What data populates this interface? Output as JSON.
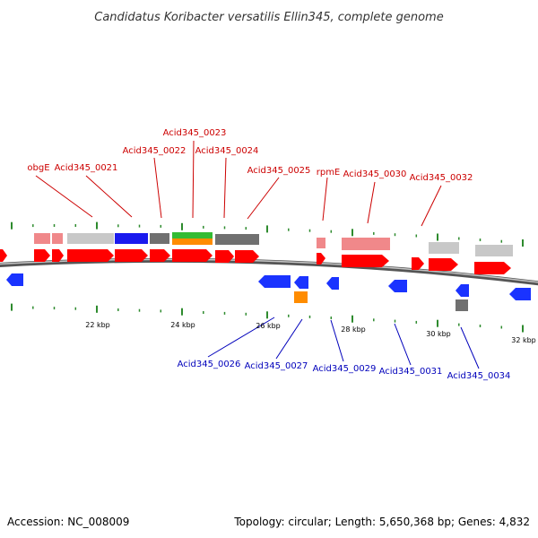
{
  "title": "Candidatus Koribacter versatilis Ellin345, complete genome",
  "footer": {
    "accession": "Accession: NC_008009",
    "stats": "Topology: circular; Length: 5,650,368 bp; Genes: 4,832"
  },
  "colors": {
    "plus_label": "#cc0000",
    "minus_label": "#0000bb",
    "backbone": "#808080",
    "tick": "#2e8b2e",
    "cds_forward": "#ff0000",
    "cds_reverse": "#1a33ff",
    "orange_feature": "#ff8c00",
    "cog_pink": "#f0888a",
    "cog_light_gray": "#c8c8c8",
    "cog_blue": "#1a1aee",
    "cog_dark_gray": "#707070",
    "cog_green": "#33bb33"
  },
  "scale_labels": [
    "22 kbp",
    "24 kbp",
    "26 kbp",
    "28 kbp",
    "30 kbp",
    "32 kbp"
  ],
  "gene_labels_top": [
    "obgE",
    "Acid345_0021",
    "Acid345_0022",
    "Acid345_0023",
    "Acid345_0024",
    "Acid345_0025",
    "rpmE",
    "Acid345_0030",
    "Acid345_0032"
  ],
  "gene_labels_bottom": [
    "Acid345_0026",
    "Acid345_0027",
    "Acid345_0029",
    "Acid345_0031",
    "Acid345_0034"
  ]
}
